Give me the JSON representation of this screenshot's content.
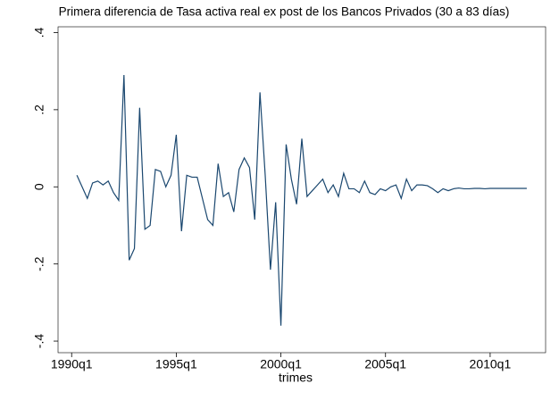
{
  "chart_data": {
    "type": "line",
    "title": "Primera diferencia de Tasa activa real ex post de los Bancos Privados (30 a 83 días)",
    "x_label": "trimes",
    "x": [
      121,
      122,
      123,
      124,
      125,
      126,
      127,
      128,
      129,
      130,
      131,
      132,
      133,
      134,
      135,
      136,
      137,
      138,
      139,
      140,
      141,
      142,
      143,
      144,
      145,
      146,
      147,
      148,
      149,
      150,
      151,
      152,
      153,
      154,
      155,
      156,
      157,
      158,
      159,
      160,
      161,
      162,
      163,
      164,
      165,
      166,
      167,
      168,
      169,
      170,
      171,
      172,
      173,
      174,
      175,
      176,
      177,
      178,
      179,
      180,
      181,
      182,
      183,
      184,
      185,
      186,
      187,
      188,
      189,
      190,
      191,
      192,
      193,
      194,
      195,
      196,
      197,
      198,
      199,
      200,
      201,
      202,
      203,
      204,
      205,
      206,
      207
    ],
    "series": [
      {
        "color": "#1a476f",
        "values": [
          0.03,
          0.0,
          -0.03,
          0.01,
          0.015,
          0.005,
          0.015,
          -0.015,
          -0.035,
          0.29,
          -0.19,
          -0.16,
          0.205,
          -0.11,
          -0.1,
          0.045,
          0.04,
          0.0,
          0.03,
          0.135,
          -0.115,
          0.03,
          0.025,
          0.025,
          -0.03,
          -0.085,
          -0.1,
          0.06,
          -0.025,
          -0.015,
          -0.065,
          0.045,
          0.075,
          0.05,
          -0.085,
          0.245,
          0.03,
          -0.215,
          -0.04,
          -0.36,
          0.11,
          0.02,
          -0.045,
          0.125,
          -0.025,
          -0.01,
          0.005,
          0.02,
          -0.015,
          0.005,
          -0.025,
          0.035,
          -0.005,
          -0.005,
          -0.015,
          0.015,
          -0.015,
          -0.02,
          -0.005,
          -0.01,
          0.0,
          0.005,
          -0.03,
          0.02,
          -0.01,
          0.005,
          0.005,
          0.003,
          -0.005,
          -0.015,
          -0.005,
          -0.01,
          -0.005,
          -0.003,
          -0.005,
          -0.005,
          -0.004,
          -0.004,
          -0.005,
          -0.004,
          -0.004,
          -0.004,
          -0.004,
          -0.004,
          -0.004,
          -0.004,
          -0.004
        ]
      }
    ],
    "xlim": [
      117.4,
      210.6
    ],
    "ylim": [
      -0.43,
      0.415
    ],
    "xticks": [
      {
        "value": 120,
        "label": "1990q1"
      },
      {
        "value": 140,
        "label": "1995q1"
      },
      {
        "value": 160,
        "label": "2000q1"
      },
      {
        "value": 180,
        "label": "2005q1"
      },
      {
        "value": 200,
        "label": "2010q1"
      }
    ],
    "yticks": [
      {
        "value": -0.4,
        "label": "-.4"
      },
      {
        "value": -0.2,
        "label": "-.2"
      },
      0,
      {
        "value": 0.2,
        "label": ".2"
      },
      {
        "value": 0.4,
        "label": ".4"
      }
    ]
  }
}
